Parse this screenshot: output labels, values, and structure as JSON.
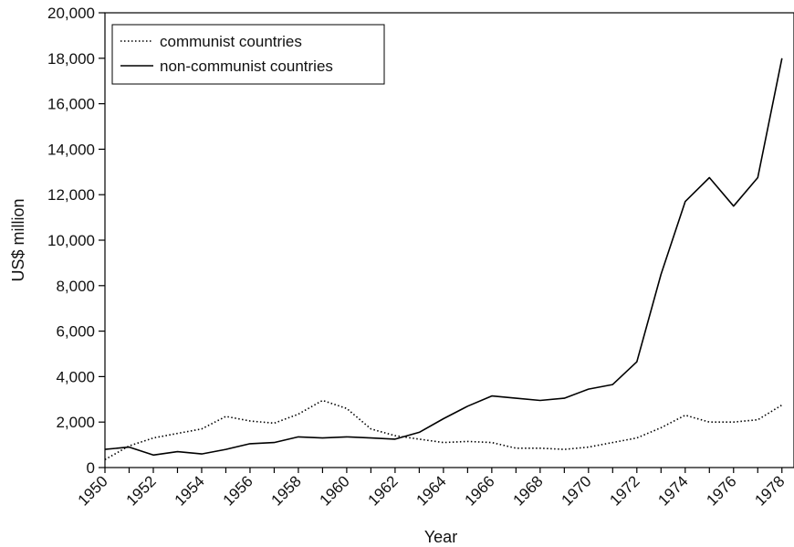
{
  "chart_data": {
    "type": "line",
    "title": "",
    "xlabel": "Year",
    "ylabel": "US$ million",
    "xlim": [
      1950,
      1978.5
    ],
    "ylim": [
      0,
      20000
    ],
    "x_ticks": [
      1950,
      1952,
      1954,
      1956,
      1958,
      1960,
      1962,
      1964,
      1966,
      1968,
      1970,
      1972,
      1974,
      1976,
      1978
    ],
    "y_ticks": [
      0,
      2000,
      4000,
      6000,
      8000,
      10000,
      12000,
      14000,
      16000,
      18000,
      20000
    ],
    "y_tick_labels": [
      "0",
      "2,000",
      "4,000",
      "6,000",
      "8,000",
      "10,000",
      "12,000",
      "14,000",
      "16,000",
      "18,000",
      "20,000"
    ],
    "x_tick_labels": [
      "1950",
      "1952",
      "1954",
      "1956",
      "1958",
      "1960",
      "1962",
      "1964",
      "1966",
      "1968",
      "1970",
      "1972",
      "1974",
      "1976",
      "1978"
    ],
    "grid": false,
    "legend_position": "top-left",
    "x": [
      1950,
      1951,
      1952,
      1953,
      1954,
      1955,
      1956,
      1957,
      1958,
      1959,
      1960,
      1961,
      1962,
      1963,
      1964,
      1965,
      1966,
      1967,
      1968,
      1969,
      1970,
      1971,
      1972,
      1973,
      1974,
      1975,
      1976,
      1977,
      1978
    ],
    "series": [
      {
        "name": "communist countries",
        "style": "dotted",
        "color": "#000000",
        "values": [
          350,
          950,
          1300,
          1500,
          1700,
          2250,
          2050,
          1950,
          2350,
          2950,
          2600,
          1700,
          1400,
          1250,
          1100,
          1150,
          1100,
          850,
          850,
          800,
          900,
          1100,
          1300,
          1750,
          2300,
          2000,
          2000,
          2100,
          2750
        ]
      },
      {
        "name": "non-communist countries",
        "style": "solid",
        "color": "#000000",
        "values": [
          800,
          900,
          550,
          700,
          600,
          800,
          1050,
          1100,
          1350,
          1300,
          1350,
          1300,
          1250,
          1550,
          2150,
          2700,
          3150,
          3050,
          2950,
          3050,
          3450,
          3650,
          4650,
          8500,
          11700,
          12750,
          11500,
          12750,
          18000
        ]
      }
    ]
  }
}
